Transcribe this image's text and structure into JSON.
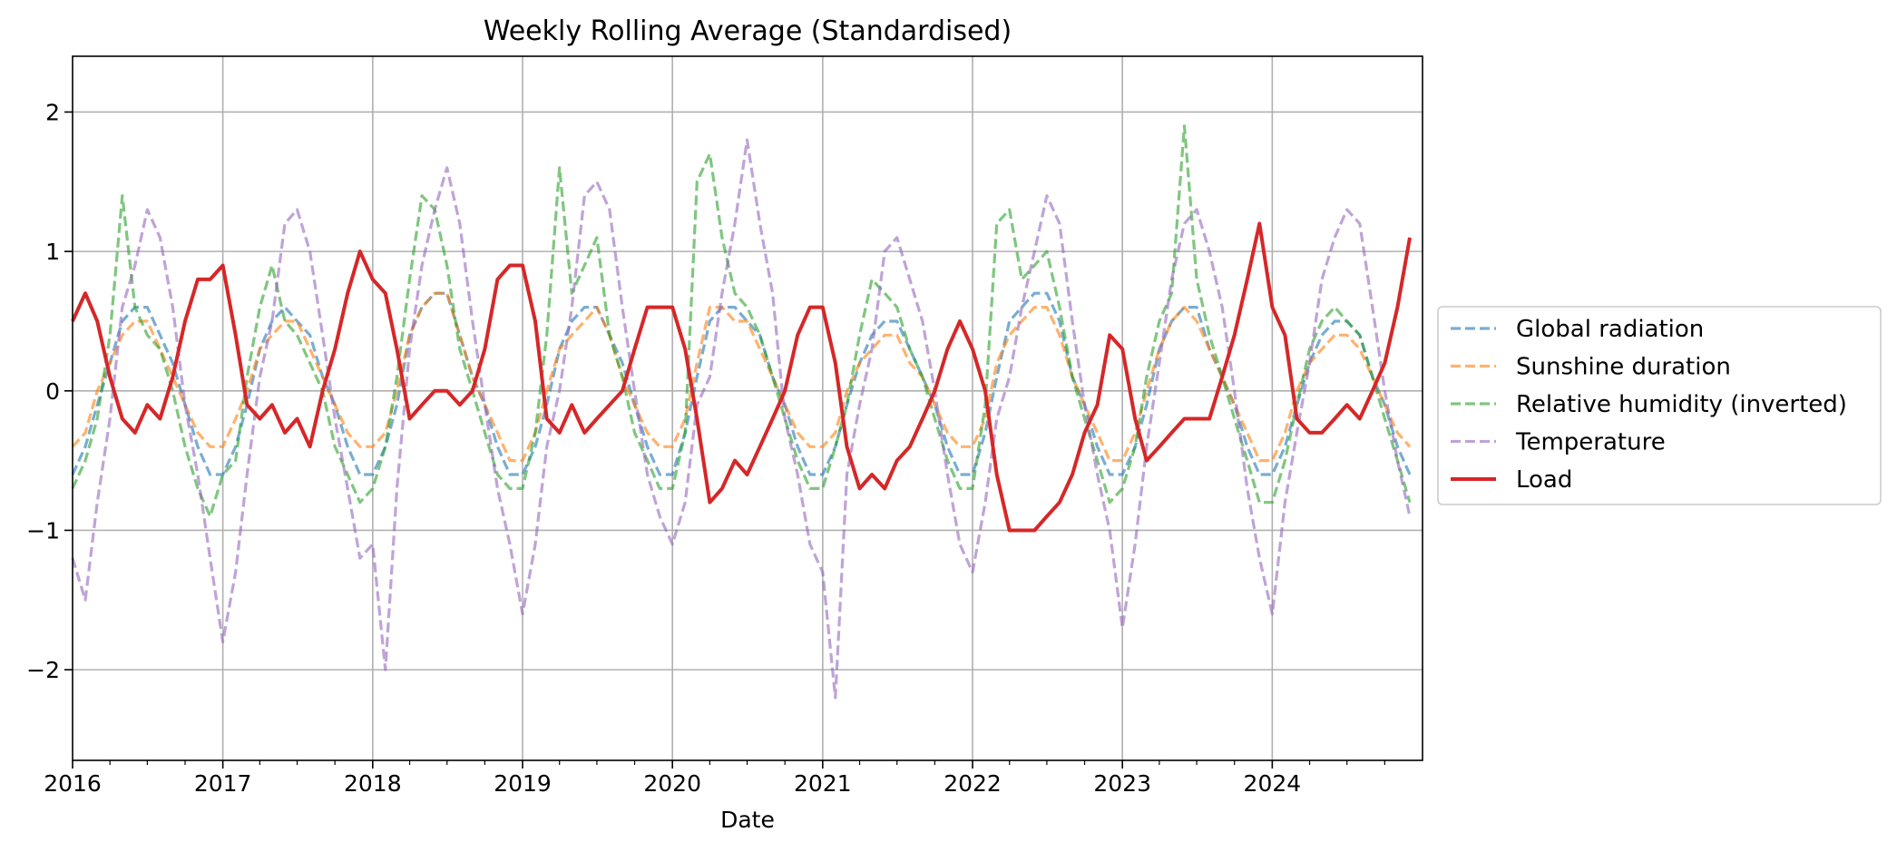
{
  "chart_data": {
    "type": "line",
    "title": "Weekly Rolling Average (Standardised)",
    "xlabel": "Date",
    "ylabel": "",
    "xlim": [
      "2016-01-01",
      "2025-01-01"
    ],
    "ylim": [
      -2.65,
      2.4
    ],
    "grid": true,
    "legend_placement": "center-right outside",
    "x_tick_labels": [
      "2016",
      "2017",
      "2018",
      "2019",
      "2020",
      "2021",
      "2022",
      "2023",
      "2024"
    ],
    "y_ticks": [
      -2,
      -1,
      0,
      1,
      2
    ],
    "y_tick_labels": [
      "−2",
      "−1",
      "0",
      "1",
      "2"
    ],
    "x": [
      "2016-01-01",
      "2016-02-01",
      "2016-03-01",
      "2016-04-01",
      "2016-05-01",
      "2016-06-01",
      "2016-07-01",
      "2016-08-01",
      "2016-09-01",
      "2016-10-01",
      "2016-11-01",
      "2016-12-01",
      "2017-01-01",
      "2017-02-01",
      "2017-03-01",
      "2017-04-01",
      "2017-05-01",
      "2017-06-01",
      "2017-07-01",
      "2017-08-01",
      "2017-09-01",
      "2017-10-01",
      "2017-11-01",
      "2017-12-01",
      "2018-01-01",
      "2018-02-01",
      "2018-03-01",
      "2018-04-01",
      "2018-05-01",
      "2018-06-01",
      "2018-07-01",
      "2018-08-01",
      "2018-09-01",
      "2018-10-01",
      "2018-11-01",
      "2018-12-01",
      "2019-01-01",
      "2019-02-01",
      "2019-03-01",
      "2019-04-01",
      "2019-05-01",
      "2019-06-01",
      "2019-07-01",
      "2019-08-01",
      "2019-09-01",
      "2019-10-01",
      "2019-11-01",
      "2019-12-01",
      "2020-01-01",
      "2020-02-01",
      "2020-03-01",
      "2020-04-01",
      "2020-05-01",
      "2020-06-01",
      "2020-07-01",
      "2020-08-01",
      "2020-09-01",
      "2020-10-01",
      "2020-11-01",
      "2020-12-01",
      "2021-01-01",
      "2021-02-01",
      "2021-03-01",
      "2021-04-01",
      "2021-05-01",
      "2021-06-01",
      "2021-07-01",
      "2021-08-01",
      "2021-09-01",
      "2021-10-01",
      "2021-11-01",
      "2021-12-01",
      "2022-01-01",
      "2022-02-01",
      "2022-03-01",
      "2022-04-01",
      "2022-05-01",
      "2022-06-01",
      "2022-07-01",
      "2022-08-01",
      "2022-09-01",
      "2022-10-01",
      "2022-11-01",
      "2022-12-01",
      "2023-01-01",
      "2023-02-01",
      "2023-03-01",
      "2023-04-01",
      "2023-05-01",
      "2023-06-01",
      "2023-07-01",
      "2023-08-01",
      "2023-09-01",
      "2023-10-01",
      "2023-11-01",
      "2023-12-01",
      "2024-01-01",
      "2024-02-01",
      "2024-03-01",
      "2024-04-01",
      "2024-05-01",
      "2024-06-01",
      "2024-07-01",
      "2024-08-01",
      "2024-09-01",
      "2024-10-01",
      "2024-11-01",
      "2024-12-01"
    ],
    "series": [
      {
        "name": "Global radiation",
        "color": "#1f77b4",
        "style": "dashed",
        "values": [
          -0.6,
          -0.4,
          -0.1,
          0.2,
          0.5,
          0.6,
          0.6,
          0.4,
          0.2,
          -0.1,
          -0.4,
          -0.6,
          -0.6,
          -0.4,
          -0.1,
          0.3,
          0.5,
          0.6,
          0.5,
          0.4,
          0.1,
          -0.1,
          -0.4,
          -0.6,
          -0.6,
          -0.4,
          -0.1,
          0.4,
          0.6,
          0.7,
          0.7,
          0.4,
          0.1,
          -0.1,
          -0.4,
          -0.6,
          -0.6,
          -0.4,
          -0.1,
          0.3,
          0.5,
          0.6,
          0.6,
          0.4,
          0.2,
          -0.1,
          -0.4,
          -0.6,
          -0.6,
          -0.3,
          0.1,
          0.5,
          0.6,
          0.6,
          0.5,
          0.4,
          0.1,
          -0.1,
          -0.4,
          -0.6,
          -0.6,
          -0.4,
          -0.1,
          0.2,
          0.4,
          0.5,
          0.5,
          0.3,
          0.1,
          -0.1,
          -0.4,
          -0.6,
          -0.6,
          -0.3,
          0.1,
          0.5,
          0.6,
          0.7,
          0.7,
          0.5,
          0.1,
          -0.1,
          -0.4,
          -0.6,
          -0.6,
          -0.4,
          -0.1,
          0.3,
          0.5,
          0.6,
          0.6,
          0.3,
          0.1,
          -0.1,
          -0.4,
          -0.6,
          -0.6,
          -0.4,
          -0.1,
          0.2,
          0.4,
          0.5,
          0.5,
          0.4,
          0.1,
          -0.1,
          -0.4,
          -0.6
        ]
      },
      {
        "name": "Sunshine duration",
        "color": "#ff7f0e",
        "style": "dashed",
        "values": [
          -0.4,
          -0.3,
          0.0,
          0.2,
          0.4,
          0.5,
          0.5,
          0.3,
          0.1,
          -0.1,
          -0.3,
          -0.4,
          -0.4,
          -0.2,
          0.0,
          0.3,
          0.4,
          0.5,
          0.5,
          0.3,
          0.1,
          -0.1,
          -0.3,
          -0.4,
          -0.4,
          -0.3,
          0.0,
          0.4,
          0.6,
          0.7,
          0.7,
          0.4,
          0.1,
          -0.1,
          -0.3,
          -0.5,
          -0.5,
          -0.3,
          0.0,
          0.3,
          0.4,
          0.5,
          0.6,
          0.4,
          0.1,
          -0.1,
          -0.3,
          -0.4,
          -0.4,
          -0.2,
          0.2,
          0.6,
          0.6,
          0.5,
          0.5,
          0.3,
          0.1,
          -0.1,
          -0.3,
          -0.4,
          -0.4,
          -0.3,
          0.0,
          0.2,
          0.3,
          0.4,
          0.4,
          0.2,
          0.1,
          -0.1,
          -0.3,
          -0.4,
          -0.4,
          -0.2,
          0.2,
          0.4,
          0.5,
          0.6,
          0.6,
          0.4,
          0.1,
          -0.1,
          -0.3,
          -0.5,
          -0.5,
          -0.3,
          0.0,
          0.3,
          0.5,
          0.6,
          0.5,
          0.3,
          0.1,
          -0.1,
          -0.3,
          -0.5,
          -0.5,
          -0.3,
          0.0,
          0.2,
          0.3,
          0.4,
          0.4,
          0.3,
          0.1,
          -0.1,
          -0.3,
          -0.4
        ]
      },
      {
        "name": "Relative humidity (inverted)",
        "color": "#2ca02c",
        "style": "dashed",
        "values": [
          -0.7,
          -0.5,
          -0.2,
          0.4,
          1.4,
          0.6,
          0.4,
          0.3,
          0.0,
          -0.4,
          -0.7,
          -0.9,
          -0.6,
          -0.5,
          0.1,
          0.6,
          0.9,
          0.5,
          0.4,
          0.2,
          0.0,
          -0.4,
          -0.6,
          -0.8,
          -0.7,
          -0.4,
          0.1,
          0.8,
          1.4,
          1.3,
          0.9,
          0.3,
          0.0,
          -0.3,
          -0.6,
          -0.7,
          -0.7,
          -0.3,
          0.4,
          1.6,
          0.7,
          0.9,
          1.1,
          0.4,
          0.1,
          -0.3,
          -0.5,
          -0.7,
          -0.7,
          -0.3,
          1.5,
          1.7,
          1.1,
          0.7,
          0.6,
          0.4,
          0.1,
          -0.2,
          -0.5,
          -0.7,
          -0.7,
          -0.4,
          -0.1,
          0.4,
          0.8,
          0.7,
          0.6,
          0.3,
          0.1,
          -0.2,
          -0.5,
          -0.7,
          -0.7,
          -0.1,
          1.2,
          1.3,
          0.8,
          0.9,
          1.0,
          0.6,
          0.1,
          -0.2,
          -0.5,
          -0.8,
          -0.7,
          -0.4,
          0.1,
          0.5,
          0.7,
          1.9,
          0.8,
          0.4,
          0.1,
          -0.2,
          -0.5,
          -0.8,
          -0.8,
          -0.5,
          -0.1,
          0.3,
          0.5,
          0.6,
          0.5,
          0.4,
          0.1,
          -0.2,
          -0.5,
          -0.8
        ]
      },
      {
        "name": "Temperature",
        "color": "#9467bd",
        "style": "dashed",
        "values": [
          -1.2,
          -1.5,
          -0.8,
          -0.2,
          0.6,
          0.9,
          1.3,
          1.1,
          0.6,
          -0.1,
          -0.6,
          -1.2,
          -1.8,
          -1.3,
          -0.6,
          0.1,
          0.5,
          1.2,
          1.3,
          1.0,
          0.4,
          -0.2,
          -0.7,
          -1.2,
          -1.1,
          -2.0,
          -0.7,
          0.3,
          0.9,
          1.3,
          1.6,
          1.2,
          0.5,
          -0.1,
          -0.7,
          -1.1,
          -1.6,
          -1.1,
          -0.4,
          0.0,
          0.6,
          1.4,
          1.5,
          1.3,
          0.6,
          0.0,
          -0.6,
          -0.9,
          -1.1,
          -0.8,
          -0.1,
          0.1,
          0.7,
          1.2,
          1.8,
          1.2,
          0.7,
          -0.2,
          -0.6,
          -1.1,
          -1.3,
          -2.2,
          -0.6,
          -0.1,
          0.3,
          1.0,
          1.1,
          0.8,
          0.5,
          0.0,
          -0.6,
          -1.1,
          -1.3,
          -0.8,
          -0.2,
          0.1,
          0.6,
          1.0,
          1.4,
          1.2,
          0.5,
          -0.1,
          -0.6,
          -1.0,
          -1.7,
          -1.1,
          -0.4,
          0.2,
          0.8,
          1.2,
          1.3,
          1.0,
          0.6,
          0.0,
          -0.7,
          -1.2,
          -1.6,
          -0.8,
          -0.3,
          0.2,
          0.8,
          1.1,
          1.3,
          1.2,
          0.6,
          0.0,
          -0.5,
          -0.9
        ]
      },
      {
        "name": "Load",
        "color": "#d62728",
        "style": "solid",
        "values": [
          0.5,
          0.7,
          0.5,
          0.1,
          -0.2,
          -0.3,
          -0.1,
          -0.2,
          0.1,
          0.5,
          0.8,
          0.8,
          0.9,
          0.4,
          -0.1,
          -0.2,
          -0.1,
          -0.3,
          -0.2,
          -0.4,
          0.0,
          0.3,
          0.7,
          1.0,
          0.8,
          0.7,
          0.3,
          -0.2,
          -0.1,
          0.0,
          0.0,
          -0.1,
          0.0,
          0.3,
          0.8,
          0.9,
          0.9,
          0.5,
          -0.2,
          -0.3,
          -0.1,
          -0.3,
          -0.2,
          -0.1,
          0.0,
          0.3,
          0.6,
          0.6,
          0.6,
          0.3,
          -0.2,
          -0.8,
          -0.7,
          -0.5,
          -0.6,
          -0.4,
          -0.2,
          0.0,
          0.4,
          0.6,
          0.6,
          0.2,
          -0.4,
          -0.7,
          -0.6,
          -0.7,
          -0.5,
          -0.4,
          -0.2,
          0.0,
          0.3,
          0.5,
          0.3,
          0.0,
          -0.6,
          -1.0,
          -1.0,
          -1.0,
          -0.9,
          -0.8,
          -0.6,
          -0.3,
          -0.1,
          0.4,
          0.3,
          -0.2,
          -0.5,
          -0.4,
          -0.3,
          -0.2,
          -0.2,
          -0.2,
          0.1,
          0.4,
          0.8,
          1.2,
          0.6,
          0.4,
          -0.2,
          -0.3,
          -0.3,
          -0.2,
          -0.1,
          -0.2,
          0.0,
          0.2,
          0.6,
          1.1
        ]
      }
    ]
  }
}
